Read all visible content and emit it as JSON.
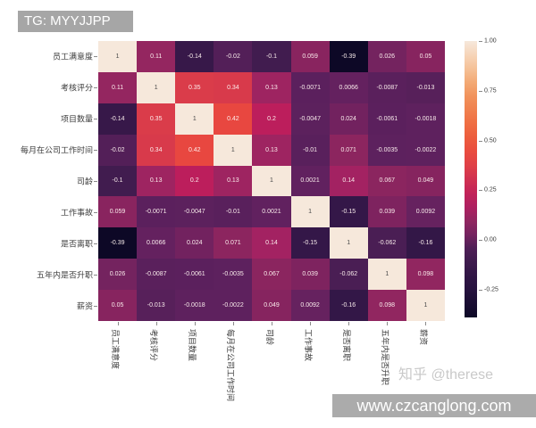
{
  "banner": {
    "text": "TG: MYYJJPP"
  },
  "watermarks": {
    "credit": "知乎 @therese",
    "site": "www.czcanglong.com"
  },
  "colors": {
    "banner_bg": "#a6a6a6",
    "bottom_banner_bg": "#ababab",
    "watermark_text": "#c9c9c9",
    "axis_label": "#3c3c3c"
  },
  "chart_data": {
    "type": "heatmap",
    "title": "",
    "colormap": "rocket",
    "vmin": -0.39,
    "vmax": 1.0,
    "legend_position": "right-colorbar",
    "labels": [
      "员工满意度",
      "考核评分",
      "项目数量",
      "每月在公司工作时间",
      "司龄",
      "工作事故",
      "是否离职",
      "五年内是否升职",
      "薪资"
    ],
    "matrix": [
      [
        "1",
        "0.11",
        "-0.14",
        "-0.02",
        "-0.1",
        "0.059",
        "-0.39",
        "0.026",
        "0.05"
      ],
      [
        "0.11",
        "1",
        "0.35",
        "0.34",
        "0.13",
        "-0.0071",
        "0.0066",
        "-0.0087",
        "-0.013"
      ],
      [
        "-0.14",
        "0.35",
        "1",
        "0.42",
        "0.2",
        "-0.0047",
        "0.024",
        "-0.0061",
        "-0.0018"
      ],
      [
        "-0.02",
        "0.34",
        "0.42",
        "1",
        "0.13",
        "-0.01",
        "0.071",
        "-0.0035",
        "-0.0022"
      ],
      [
        "-0.1",
        "0.13",
        "0.2",
        "0.13",
        "1",
        "0.0021",
        "0.14",
        "0.067",
        "0.049"
      ],
      [
        "0.059",
        "-0.0071",
        "-0.0047",
        "-0.01",
        "0.0021",
        "1",
        "-0.15",
        "0.039",
        "0.0092"
      ],
      [
        "-0.39",
        "0.0066",
        "0.024",
        "0.071",
        "0.14",
        "-0.15",
        "1",
        "-0.062",
        "-0.16"
      ],
      [
        "0.026",
        "-0.0087",
        "-0.0061",
        "-0.0035",
        "0.067",
        "0.039",
        "-0.062",
        "1",
        "0.098"
      ],
      [
        "0.05",
        "-0.013",
        "-0.0018",
        "-0.0022",
        "0.049",
        "0.0092",
        "-0.16",
        "0.098",
        "1"
      ]
    ],
    "colorbar_ticks": [
      {
        "label": "1.00",
        "value": 1.0
      },
      {
        "label": "0.75",
        "value": 0.75
      },
      {
        "label": "0.50",
        "value": 0.5
      },
      {
        "label": "0.25",
        "value": 0.25
      },
      {
        "label": "0.00",
        "value": 0.0
      },
      {
        "label": "-0.25",
        "value": -0.25
      }
    ]
  }
}
